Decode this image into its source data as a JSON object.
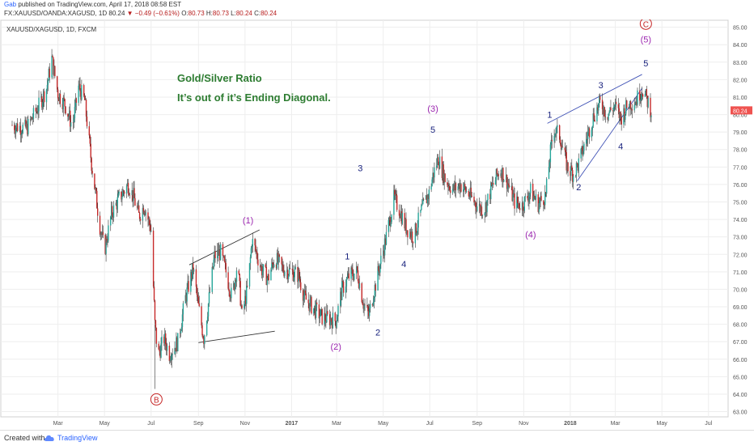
{
  "header": {
    "author": "Gab",
    "published_text": " published on TradingView.com, April 17, 2018 08:58 EST",
    "symbol": "FX:XAUUSD/OANDA:XAGUSD, 1D",
    "last": "80.24",
    "change": "−0.49 (−0.61%)",
    "o_label": "O:",
    "o_val": "80.73",
    "h_label": "H:",
    "h_val": "80.73",
    "l_label": "L:",
    "l_val": "80.24",
    "c_label": "C:",
    "c_val": "80.24"
  },
  "footer": {
    "created_label": "Created with",
    "brand": "TradingView"
  },
  "chart_data": {
    "type": "candlestick",
    "title": "XAUUSD/XAGUSD, 1D, FXCM",
    "ylim": [
      62.7,
      85.4
    ],
    "y_ticks": [
      "63.00",
      "64.00",
      "65.00",
      "66.00",
      "67.00",
      "68.00",
      "69.00",
      "70.00",
      "71.00",
      "72.00",
      "73.00",
      "74.00",
      "75.00",
      "76.00",
      "77.00",
      "78.00",
      "79.00",
      "80.00",
      "81.00",
      "82.00",
      "83.00",
      "84.00",
      "85.00"
    ],
    "x_ticks": [
      "Mar",
      "May",
      "Jul",
      "Sep",
      "Nov",
      "2017",
      "Mar",
      "May",
      "Jul",
      "Sep",
      "Nov",
      "2018",
      "Mar",
      "May",
      "Jul"
    ],
    "last_price": "80.24",
    "annotation_lines": [
      "Gold/Silver Ratio",
      "It’s out of it’s Ending Diagonal."
    ],
    "price_path": [
      [
        "2016-01-01",
        79.4
      ],
      [
        "2016-01-20",
        79.2
      ],
      [
        "2016-02-05",
        80.5
      ],
      [
        "2016-02-15",
        81.5
      ],
      [
        "2016-02-22",
        83.2
      ],
      [
        "2016-03-01",
        81.2
      ],
      [
        "2016-03-10",
        80.6
      ],
      [
        "2016-03-20",
        79.3
      ],
      [
        "2016-03-28",
        81.6
      ],
      [
        "2016-04-05",
        80.8
      ],
      [
        "2016-04-14",
        77.2
      ],
      [
        "2016-04-25",
        73.6
      ],
      [
        "2016-05-01",
        72.2
      ],
      [
        "2016-05-10",
        74.3
      ],
      [
        "2016-05-20",
        75.2
      ],
      [
        "2016-06-01",
        76.0
      ],
      [
        "2016-06-08",
        75.3
      ],
      [
        "2016-06-15",
        74.2
      ],
      [
        "2016-06-22",
        74.8
      ],
      [
        "2016-07-01",
        73.4
      ],
      [
        "2016-07-06",
        68.0
      ],
      [
        "2016-07-10",
        66.2
      ],
      [
        "2016-07-18",
        67.2
      ],
      [
        "2016-07-25",
        66.3
      ],
      [
        "2016-08-05",
        67.0
      ],
      [
        "2016-08-15",
        69.5
      ],
      [
        "2016-08-25",
        71.2
      ],
      [
        "2016-09-01",
        69.0
      ],
      [
        "2016-09-08",
        67.2
      ],
      [
        "2016-09-15",
        69.5
      ],
      [
        "2016-09-22",
        71.9
      ],
      [
        "2016-09-30",
        72.1
      ],
      [
        "2016-10-07",
        71.0
      ],
      [
        "2016-10-15",
        69.5
      ],
      [
        "2016-10-22",
        71.5
      ],
      [
        "2016-10-28",
        68.5
      ],
      [
        "2016-11-05",
        70.2
      ],
      [
        "2016-11-10",
        72.8
      ],
      [
        "2016-11-15",
        72.2
      ],
      [
        "2016-11-22",
        71.2
      ],
      [
        "2016-12-01",
        70.6
      ],
      [
        "2016-12-10",
        71.8
      ],
      [
        "2016-12-20",
        71.2
      ],
      [
        "2017-01-01",
        71.0
      ],
      [
        "2017-01-10",
        70.8
      ],
      [
        "2017-01-18",
        69.5
      ],
      [
        "2017-01-28",
        69.0
      ],
      [
        "2017-02-10",
        68.4
      ],
      [
        "2017-02-20",
        68.3
      ],
      [
        "2017-02-28",
        68.2
      ],
      [
        "2017-03-08",
        70.0
      ],
      [
        "2017-03-18",
        70.8
      ],
      [
        "2017-03-28",
        71.0
      ],
      [
        "2017-04-05",
        69.2
      ],
      [
        "2017-04-12",
        68.5
      ],
      [
        "2017-04-22",
        70.5
      ],
      [
        "2017-05-05",
        73.0
      ],
      [
        "2017-05-15",
        75.2
      ],
      [
        "2017-05-22",
        74.6
      ],
      [
        "2017-05-30",
        73.6
      ],
      [
        "2017-06-10",
        73.0
      ],
      [
        "2017-06-20",
        74.5
      ],
      [
        "2017-06-30",
        75.5
      ],
      [
        "2017-07-05",
        76.5
      ],
      [
        "2017-07-12",
        77.5
      ],
      [
        "2017-07-22",
        76.2
      ],
      [
        "2017-08-01",
        75.7
      ],
      [
        "2017-08-10",
        76.0
      ],
      [
        "2017-08-20",
        75.5
      ],
      [
        "2017-09-01",
        74.8
      ],
      [
        "2017-09-10",
        74.5
      ],
      [
        "2017-09-20",
        75.8
      ],
      [
        "2017-10-01",
        76.9
      ],
      [
        "2017-10-10",
        76.2
      ],
      [
        "2017-10-20",
        75.0
      ],
      [
        "2017-10-30",
        74.8
      ],
      [
        "2017-11-10",
        75.6
      ],
      [
        "2017-11-20",
        74.9
      ],
      [
        "2017-11-30",
        75.4
      ],
      [
        "2017-12-05",
        77.5
      ],
      [
        "2017-12-10",
        79.2
      ],
      [
        "2017-12-18",
        78.8
      ],
      [
        "2017-12-28",
        77.0
      ],
      [
        "2018-01-05",
        76.6
      ],
      [
        "2018-01-12",
        77.2
      ],
      [
        "2018-01-22",
        78.6
      ],
      [
        "2018-02-01",
        80.0
      ],
      [
        "2018-02-10",
        80.7
      ],
      [
        "2018-02-18",
        80.0
      ],
      [
        "2018-02-28",
        80.5
      ],
      [
        "2018-03-08",
        79.8
      ],
      [
        "2018-03-18",
        80.6
      ],
      [
        "2018-03-28",
        80.8
      ],
      [
        "2018-04-05",
        81.5
      ],
      [
        "2018-04-17",
        80.24
      ]
    ],
    "labels": [
      {
        "text": "(1)",
        "date": "2016-11-05",
        "price": 73.95,
        "color": "#9c27b0"
      },
      {
        "text": "(2)",
        "date": "2017-02-28",
        "price": 66.72,
        "color": "#9c27b0"
      },
      {
        "text": "(3)",
        "date": "2017-07-05",
        "price": 80.35,
        "color": "#9c27b0"
      },
      {
        "text": "(4)",
        "date": "2017-11-10",
        "price": 73.15,
        "color": "#9c27b0"
      },
      {
        "text": "(5)",
        "date": "2018-04-10",
        "price": 84.3,
        "color": "#9c27b0"
      },
      {
        "text": "1",
        "date": "2017-03-15",
        "price": 71.9,
        "color": "#1a237e"
      },
      {
        "text": "2",
        "date": "2017-04-24",
        "price": 67.55,
        "color": "#1a237e"
      },
      {
        "text": "3",
        "date": "2017-04-01",
        "price": 76.95,
        "color": "#1a237e"
      },
      {
        "text": "4",
        "date": "2017-05-28",
        "price": 71.45,
        "color": "#1a237e"
      },
      {
        "text": "5",
        "date": "2017-07-05",
        "price": 79.15,
        "color": "#1a237e"
      },
      {
        "text": "1",
        "date": "2017-12-05",
        "price": 80.0,
        "color": "#1a237e"
      },
      {
        "text": "2",
        "date": "2018-01-12",
        "price": 75.85,
        "color": "#1a237e"
      },
      {
        "text": "3",
        "date": "2018-02-10",
        "price": 81.7,
        "color": "#1a237e"
      },
      {
        "text": "4",
        "date": "2018-03-08",
        "price": 78.2,
        "color": "#1a237e"
      },
      {
        "text": "5",
        "date": "2018-04-10",
        "price": 82.95,
        "color": "#1a237e"
      }
    ],
    "circled_labels": [
      {
        "text": "B",
        "date": "2016-07-08",
        "price": 63.7,
        "color": "#c62828"
      },
      {
        "text": "C",
        "date": "2018-04-10",
        "price": 85.2,
        "color": "#c62828"
      }
    ],
    "trendlines": [
      {
        "from": [
          "2016-08-20",
          71.4
        ],
        "to": [
          "2016-11-20",
          73.4
        ],
        "color": "#333333"
      },
      {
        "from": [
          "2016-09-01",
          66.95
        ],
        "to": [
          "2016-12-10",
          67.6
        ],
        "color": "#333333"
      },
      {
        "from": [
          "2017-12-02",
          79.5
        ],
        "to": [
          "2018-04-05",
          82.3
        ],
        "color": "#3f51b5"
      },
      {
        "from": [
          "2018-01-10",
          76.2
        ],
        "to": [
          "2018-04-05",
          81.5
        ],
        "color": "#3f51b5"
      }
    ],
    "colors": {
      "up": "#26a69a",
      "down": "#c62828",
      "wick": "#333333",
      "price_tag": "#ef5350",
      "annotation": "#2e7d32"
    }
  }
}
